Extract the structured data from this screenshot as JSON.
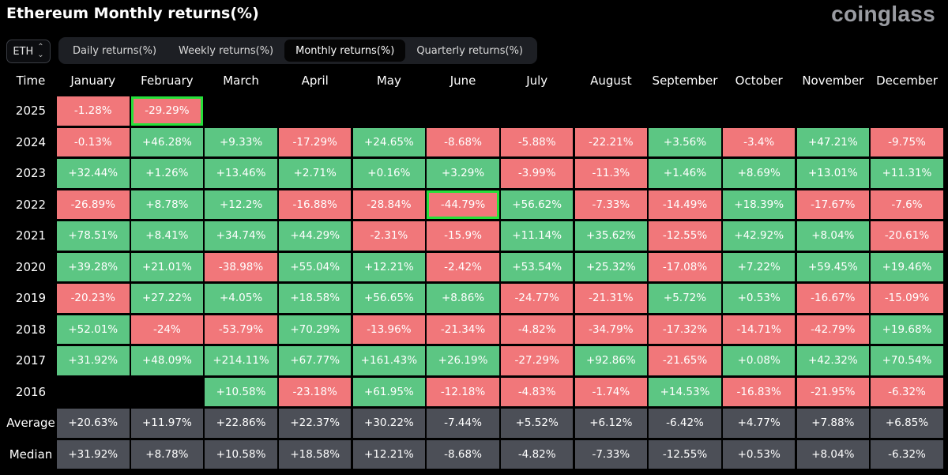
{
  "header": {
    "title": "Ethereum Monthly returns(%)",
    "brand": "coinglass"
  },
  "controls": {
    "asset": "ETH",
    "tabs": [
      {
        "label": "Daily returns(%)",
        "active": false
      },
      {
        "label": "Weekly returns(%)",
        "active": false
      },
      {
        "label": "Monthly returns(%)",
        "active": true
      },
      {
        "label": "Quarterly returns(%)",
        "active": false
      }
    ]
  },
  "colors": {
    "positive": "#5cc683",
    "negative": "#f1777a",
    "summary": "#4c4f57",
    "highlight": "#25e03a",
    "background": "#000000"
  },
  "chart_data": {
    "type": "heatmap",
    "corner_label": "Time",
    "columns": [
      "January",
      "February",
      "March",
      "April",
      "May",
      "June",
      "July",
      "August",
      "September",
      "October",
      "November",
      "December"
    ],
    "rows": [
      {
        "label": "2025",
        "values": [
          "-1.28%",
          "-29.29%",
          null,
          null,
          null,
          null,
          null,
          null,
          null,
          null,
          null,
          null
        ]
      },
      {
        "label": "2024",
        "values": [
          "-0.13%",
          "+46.28%",
          "+9.33%",
          "-17.29%",
          "+24.65%",
          "-8.68%",
          "-5.88%",
          "-22.21%",
          "+3.56%",
          "-3.4%",
          "+47.21%",
          "-9.75%"
        ]
      },
      {
        "label": "2023",
        "values": [
          "+32.44%",
          "+1.26%",
          "+13.46%",
          "+2.71%",
          "+0.16%",
          "+3.29%",
          "-3.99%",
          "-11.3%",
          "+1.46%",
          "+8.69%",
          "+13.01%",
          "+11.31%"
        ]
      },
      {
        "label": "2022",
        "values": [
          "-26.89%",
          "+8.78%",
          "+12.2%",
          "-16.88%",
          "-28.84%",
          "-44.79%",
          "+56.62%",
          "-7.33%",
          "-14.49%",
          "+18.39%",
          "-17.67%",
          "-7.6%"
        ]
      },
      {
        "label": "2021",
        "values": [
          "+78.51%",
          "+8.41%",
          "+34.74%",
          "+44.29%",
          "-2.31%",
          "-15.9%",
          "+11.14%",
          "+35.62%",
          "-12.55%",
          "+42.92%",
          "+8.04%",
          "-20.61%"
        ]
      },
      {
        "label": "2020",
        "values": [
          "+39.28%",
          "+21.01%",
          "-38.98%",
          "+55.04%",
          "+12.21%",
          "-2.42%",
          "+53.54%",
          "+25.32%",
          "-17.08%",
          "+7.22%",
          "+59.45%",
          "+19.46%"
        ]
      },
      {
        "label": "2019",
        "values": [
          "-20.23%",
          "+27.22%",
          "+4.05%",
          "+18.58%",
          "+56.65%",
          "+8.86%",
          "-24.77%",
          "-21.31%",
          "+5.72%",
          "+0.53%",
          "-16.67%",
          "-15.09%"
        ]
      },
      {
        "label": "2018",
        "values": [
          "+52.01%",
          "-24%",
          "-53.79%",
          "+70.29%",
          "-13.96%",
          "-21.34%",
          "-4.82%",
          "-34.79%",
          "-17.32%",
          "-14.71%",
          "-42.79%",
          "+19.68%"
        ]
      },
      {
        "label": "2017",
        "values": [
          "+31.92%",
          "+48.09%",
          "+214.11%",
          "+67.77%",
          "+161.43%",
          "+26.19%",
          "-27.29%",
          "+92.86%",
          "-21.65%",
          "+0.08%",
          "+42.32%",
          "+70.54%"
        ]
      },
      {
        "label": "2016",
        "values": [
          null,
          null,
          "+10.58%",
          "-23.18%",
          "+61.95%",
          "-12.18%",
          "-4.83%",
          "-1.74%",
          "+14.53%",
          "-16.83%",
          "-21.95%",
          "-6.32%"
        ]
      }
    ],
    "summary_rows": [
      {
        "label": "Average",
        "values": [
          "+20.63%",
          "+11.97%",
          "+22.86%",
          "+22.37%",
          "+30.22%",
          "-7.44%",
          "+5.52%",
          "+6.12%",
          "-6.42%",
          "+4.77%",
          "+7.88%",
          "+6.85%"
        ]
      },
      {
        "label": "Median",
        "values": [
          "+31.92%",
          "+8.78%",
          "+10.58%",
          "+18.58%",
          "+12.21%",
          "-8.68%",
          "-4.82%",
          "-7.33%",
          "-12.55%",
          "+0.53%",
          "+8.04%",
          "-6.32%"
        ]
      }
    ],
    "highlighted_cells": [
      {
        "row": "2025",
        "column": "February"
      },
      {
        "row": "2022",
        "column": "June"
      }
    ]
  }
}
